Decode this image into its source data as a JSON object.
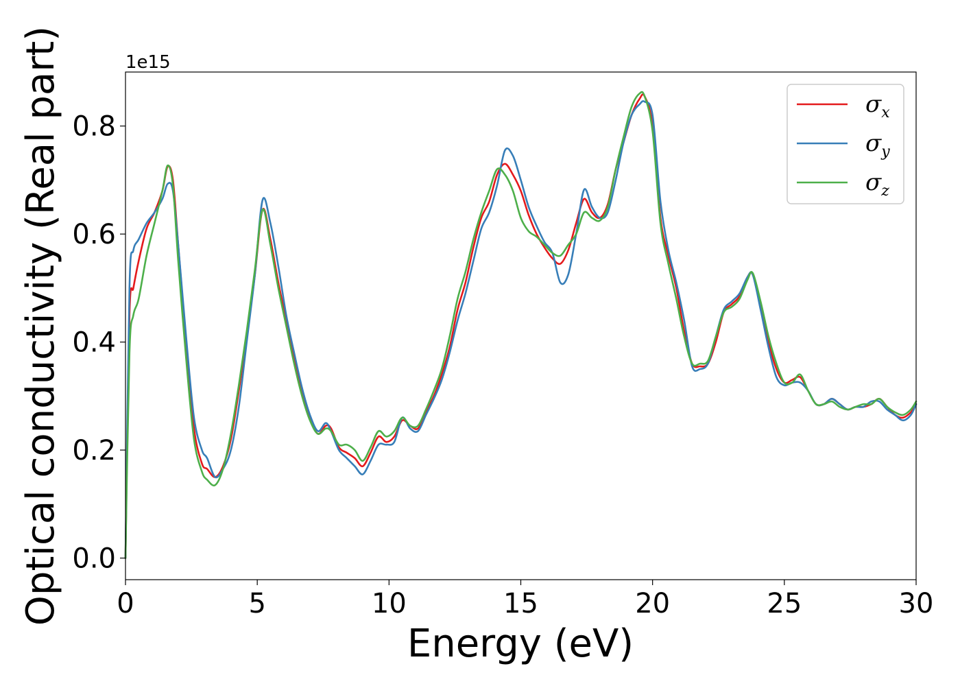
{
  "chart_data": {
    "type": "line",
    "xlabel": "Energy (eV)",
    "ylabel": "Optical conductivity (Real part)",
    "y_offset_label": "1e15",
    "xlim": [
      0,
      30
    ],
    "ylim": [
      -0.04,
      0.9
    ],
    "xticks": [
      "0",
      "5",
      "10",
      "15",
      "20",
      "25",
      "30"
    ],
    "yticks": [
      "0.0",
      "0.2",
      "0.4",
      "0.6",
      "0.8"
    ],
    "grid": false,
    "legend_position": "top-right",
    "series": [
      {
        "name": "σx",
        "symbol": "σ",
        "subscript": "x",
        "color": "#e41a1c",
        "x": [
          0,
          0.15,
          0.3,
          0.5,
          0.8,
          1.1,
          1.4,
          1.6,
          1.8,
          2.0,
          2.3,
          2.6,
          2.9,
          3.1,
          3.4,
          3.7,
          4.0,
          4.3,
          4.6,
          4.9,
          5.2,
          5.5,
          5.8,
          6.1,
          6.4,
          6.7,
          7.0,
          7.3,
          7.6,
          7.8,
          8.1,
          8.4,
          8.7,
          9.0,
          9.3,
          9.6,
          9.9,
          10.2,
          10.5,
          10.8,
          11.1,
          11.4,
          11.7,
          12.0,
          12.3,
          12.6,
          12.9,
          13.2,
          13.5,
          13.8,
          14.1,
          14.4,
          14.7,
          15.0,
          15.3,
          15.6,
          15.9,
          16.2,
          16.5,
          16.8,
          17.1,
          17.4,
          17.7,
          18.0,
          18.3,
          18.6,
          18.9,
          19.2,
          19.5,
          19.7,
          20.0,
          20.3,
          20.6,
          20.9,
          21.2,
          21.5,
          21.8,
          22.1,
          22.4,
          22.7,
          23.0,
          23.3,
          23.6,
          23.8,
          24.1,
          24.4,
          24.7,
          25.0,
          25.3,
          25.6,
          25.9,
          26.2,
          26.5,
          26.8,
          27.1,
          27.4,
          27.7,
          28.0,
          28.3,
          28.6,
          28.9,
          29.2,
          29.5,
          29.8,
          30.0
        ],
        "values": [
          0.0,
          0.45,
          0.5,
          0.55,
          0.61,
          0.64,
          0.68,
          0.725,
          0.7,
          0.58,
          0.4,
          0.24,
          0.175,
          0.165,
          0.15,
          0.17,
          0.22,
          0.31,
          0.41,
          0.52,
          0.645,
          0.59,
          0.51,
          0.44,
          0.37,
          0.31,
          0.26,
          0.23,
          0.245,
          0.24,
          0.205,
          0.195,
          0.185,
          0.17,
          0.195,
          0.225,
          0.215,
          0.225,
          0.255,
          0.245,
          0.24,
          0.27,
          0.3,
          0.34,
          0.39,
          0.46,
          0.51,
          0.575,
          0.63,
          0.66,
          0.71,
          0.73,
          0.71,
          0.68,
          0.635,
          0.6,
          0.575,
          0.555,
          0.545,
          0.57,
          0.62,
          0.665,
          0.64,
          0.63,
          0.655,
          0.72,
          0.77,
          0.82,
          0.85,
          0.855,
          0.8,
          0.63,
          0.56,
          0.5,
          0.42,
          0.36,
          0.355,
          0.36,
          0.4,
          0.455,
          0.47,
          0.485,
          0.52,
          0.525,
          0.47,
          0.4,
          0.35,
          0.325,
          0.33,
          0.335,
          0.31,
          0.285,
          0.285,
          0.295,
          0.285,
          0.275,
          0.28,
          0.28,
          0.285,
          0.295,
          0.28,
          0.265,
          0.26,
          0.27,
          0.285
        ]
      },
      {
        "name": "σy",
        "symbol": "σ",
        "subscript": "y",
        "color": "#377eb8",
        "x": [
          0,
          0.15,
          0.3,
          0.5,
          0.8,
          1.1,
          1.4,
          1.6,
          1.8,
          2.0,
          2.3,
          2.6,
          2.9,
          3.1,
          3.4,
          3.7,
          4.0,
          4.3,
          4.6,
          4.9,
          5.2,
          5.5,
          5.8,
          6.1,
          6.4,
          6.7,
          7.0,
          7.3,
          7.6,
          7.8,
          8.1,
          8.4,
          8.7,
          9.0,
          9.3,
          9.6,
          9.9,
          10.2,
          10.5,
          10.8,
          11.1,
          11.4,
          11.7,
          12.0,
          12.3,
          12.6,
          12.9,
          13.2,
          13.5,
          13.8,
          14.1,
          14.4,
          14.7,
          15.0,
          15.3,
          15.6,
          15.9,
          16.2,
          16.5,
          16.8,
          17.1,
          17.4,
          17.7,
          18.0,
          18.3,
          18.6,
          18.9,
          19.2,
          19.5,
          19.7,
          20.0,
          20.3,
          20.6,
          20.9,
          21.2,
          21.5,
          21.8,
          22.1,
          22.4,
          22.7,
          23.0,
          23.3,
          23.6,
          23.8,
          24.1,
          24.4,
          24.7,
          25.0,
          25.3,
          25.6,
          25.9,
          26.2,
          26.5,
          26.8,
          27.1,
          27.4,
          27.7,
          28.0,
          28.3,
          28.6,
          28.9,
          29.2,
          29.5,
          29.8,
          30.0
        ],
        "values": [
          0.0,
          0.5,
          0.57,
          0.59,
          0.62,
          0.64,
          0.665,
          0.693,
          0.68,
          0.58,
          0.41,
          0.26,
          0.2,
          0.185,
          0.15,
          0.165,
          0.2,
          0.28,
          0.4,
          0.52,
          0.663,
          0.62,
          0.54,
          0.45,
          0.38,
          0.315,
          0.265,
          0.235,
          0.25,
          0.235,
          0.2,
          0.185,
          0.17,
          0.155,
          0.18,
          0.21,
          0.21,
          0.215,
          0.26,
          0.24,
          0.235,
          0.265,
          0.295,
          0.33,
          0.38,
          0.44,
          0.49,
          0.55,
          0.61,
          0.64,
          0.69,
          0.755,
          0.745,
          0.7,
          0.65,
          0.615,
          0.585,
          0.565,
          0.51,
          0.525,
          0.6,
          0.682,
          0.65,
          0.63,
          0.64,
          0.7,
          0.77,
          0.82,
          0.84,
          0.845,
          0.82,
          0.66,
          0.57,
          0.51,
          0.44,
          0.355,
          0.35,
          0.36,
          0.41,
          0.46,
          0.475,
          0.49,
          0.52,
          0.525,
          0.46,
          0.39,
          0.335,
          0.32,
          0.325,
          0.325,
          0.31,
          0.285,
          0.285,
          0.295,
          0.285,
          0.275,
          0.28,
          0.28,
          0.29,
          0.29,
          0.275,
          0.265,
          0.255,
          0.265,
          0.285
        ]
      },
      {
        "name": "σz",
        "symbol": "σ",
        "subscript": "z",
        "color": "#4daf4a",
        "x": [
          0,
          0.15,
          0.3,
          0.5,
          0.8,
          1.1,
          1.4,
          1.6,
          1.8,
          2.0,
          2.3,
          2.6,
          2.9,
          3.1,
          3.4,
          3.7,
          4.0,
          4.3,
          4.6,
          4.9,
          5.2,
          5.5,
          5.8,
          6.1,
          6.4,
          6.7,
          7.0,
          7.3,
          7.6,
          7.8,
          8.1,
          8.4,
          8.7,
          9.0,
          9.3,
          9.6,
          9.9,
          10.2,
          10.5,
          10.8,
          11.1,
          11.4,
          11.7,
          12.0,
          12.3,
          12.6,
          12.9,
          13.2,
          13.5,
          13.8,
          14.1,
          14.4,
          14.7,
          15.0,
          15.3,
          15.6,
          15.9,
          16.2,
          16.5,
          16.8,
          17.1,
          17.4,
          17.7,
          18.0,
          18.3,
          18.6,
          18.9,
          19.2,
          19.5,
          19.7,
          20.0,
          20.3,
          20.6,
          20.9,
          21.2,
          21.5,
          21.8,
          22.1,
          22.4,
          22.7,
          23.0,
          23.3,
          23.6,
          23.8,
          24.1,
          24.4,
          24.7,
          25.0,
          25.3,
          25.6,
          25.9,
          26.2,
          26.5,
          26.8,
          27.1,
          27.4,
          27.7,
          28.0,
          28.3,
          28.6,
          28.9,
          29.2,
          29.5,
          29.8,
          30.0
        ],
        "values": [
          0.0,
          0.38,
          0.45,
          0.48,
          0.56,
          0.62,
          0.68,
          0.727,
          0.69,
          0.55,
          0.37,
          0.22,
          0.16,
          0.145,
          0.135,
          0.165,
          0.23,
          0.32,
          0.42,
          0.53,
          0.645,
          0.58,
          0.5,
          0.43,
          0.36,
          0.3,
          0.255,
          0.23,
          0.24,
          0.235,
          0.21,
          0.21,
          0.2,
          0.18,
          0.205,
          0.235,
          0.225,
          0.235,
          0.26,
          0.245,
          0.245,
          0.275,
          0.31,
          0.35,
          0.41,
          0.48,
          0.53,
          0.59,
          0.64,
          0.68,
          0.72,
          0.71,
          0.68,
          0.63,
          0.605,
          0.595,
          0.58,
          0.565,
          0.56,
          0.58,
          0.6,
          0.64,
          0.63,
          0.625,
          0.65,
          0.72,
          0.78,
          0.835,
          0.86,
          0.855,
          0.79,
          0.62,
          0.545,
          0.48,
          0.41,
          0.36,
          0.36,
          0.365,
          0.41,
          0.455,
          0.465,
          0.48,
          0.515,
          0.528,
          0.475,
          0.41,
          0.36,
          0.325,
          0.325,
          0.34,
          0.31,
          0.285,
          0.285,
          0.29,
          0.28,
          0.275,
          0.28,
          0.285,
          0.285,
          0.295,
          0.28,
          0.27,
          0.265,
          0.275,
          0.29
        ]
      }
    ]
  }
}
